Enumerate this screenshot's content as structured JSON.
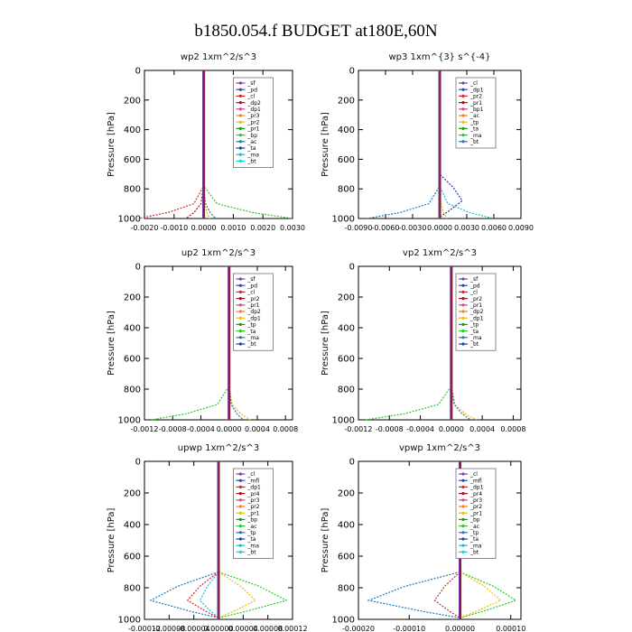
{
  "page": {
    "title": "b1850.054.f  BUDGET at180E,60N"
  },
  "chart_data": [
    {
      "type": "line",
      "title": "wp2   1xm^2/s^3",
      "ylabel": "Pressure [hPa]",
      "xlim": [
        -0.002,
        0.003
      ],
      "ylim": [
        1000,
        0
      ],
      "xticks": [
        -0.002,
        -0.001,
        0.0,
        0.001,
        0.002,
        0.003
      ],
      "xtick_labels": [
        "-0.0020",
        "-0.0010",
        "0.0000",
        "0.0010",
        "0.0020",
        "0.0030"
      ],
      "yticks": [
        0,
        200,
        400,
        600,
        800,
        1000
      ],
      "legend": [
        "_sf",
        "_pd",
        "_cl",
        "_dp2",
        "_dp1",
        "_pr3",
        "_pr2",
        "_pr1",
        "_bp",
        "_ac",
        "_ta",
        "_ma",
        "_bt"
      ],
      "series": [
        {
          "name": "_dp1",
          "color": "#d62728",
          "profile": "spike",
          "value": -0.0022
        },
        {
          "name": "_bp",
          "color": "#22cc22",
          "profile": "spike",
          "value": 0.003
        },
        {
          "name": "_dp2",
          "color": "#b01010",
          "profile": "spike",
          "value": -0.0006
        },
        {
          "name": "_ta",
          "color": "#1f77b4",
          "profile": "spike",
          "value": 0.0004
        },
        {
          "name": "_pr1",
          "color": "#f0c000",
          "profile": "spike",
          "value": 0.0002
        }
      ]
    },
    {
      "type": "line",
      "title": "wp3   1xm^{3} s^{-4}",
      "ylabel": "Pressure [hPa]",
      "xlim": [
        -0.009,
        0.009
      ],
      "ylim": [
        1000,
        0
      ],
      "xticks": [
        -0.009,
        -0.006,
        -0.003,
        0.0,
        0.003,
        0.006,
        0.009
      ],
      "xtick_labels": [
        "-0.0090",
        "-0.0060",
        "-0.0030",
        "0.0000",
        "0.0030",
        "0.0060",
        "0.0090"
      ],
      "yticks": [
        0,
        200,
        400,
        600,
        800,
        1000
      ],
      "legend": [
        "_cl",
        "_dp1",
        "_pr2",
        "_pr1",
        "_bp1",
        "_ac",
        "_tp",
        "_ta",
        "_ma",
        "_bt"
      ],
      "series": [
        {
          "name": "_ta",
          "color": "#1f3fa8",
          "profile": "bulge",
          "value": 0.0025
        },
        {
          "name": "_tp",
          "color": "#1f77b4",
          "profile": "spike",
          "value": -0.008
        },
        {
          "name": "_ma",
          "color": "#17becf",
          "profile": "spike",
          "value": 0.006
        },
        {
          "name": "_pr1",
          "color": "#f0c000",
          "profile": "spike",
          "value": 0.0008
        }
      ]
    },
    {
      "type": "line",
      "title": "up2   1xm^2/s^3",
      "ylabel": "Pressure [hPa]",
      "xlim": [
        -0.0012,
        0.0009
      ],
      "ylim": [
        1000,
        0
      ],
      "xticks": [
        -0.0012,
        -0.0008,
        -0.0004,
        0.0,
        0.0004,
        0.0008
      ],
      "xtick_labels": [
        "-0.0012",
        "-0.0008",
        "-0.0004",
        "0.0000",
        "0.0004",
        "0.0008"
      ],
      "yticks": [
        0,
        200,
        400,
        600,
        800,
        1000
      ],
      "legend": [
        "_sf",
        "_pd",
        "_cl",
        "_pr2",
        "_pr1",
        "_dp2",
        "_dp1",
        "_tp",
        "_ta",
        "_ma",
        "_bt"
      ],
      "series": [
        {
          "name": "_dp1",
          "color": "#22cc22",
          "profile": "spike",
          "value": -0.0011
        },
        {
          "name": "_pr1",
          "color": "#f0c000",
          "profile": "spike",
          "value": 0.0003
        },
        {
          "name": "_ta",
          "color": "#1f77b4",
          "profile": "spike",
          "value": 0.0002
        }
      ]
    },
    {
      "type": "line",
      "title": "vp2   1xm^2/s^3",
      "ylabel": "Pressure [hPa]",
      "xlim": [
        -0.0012,
        0.0009
      ],
      "ylim": [
        1000,
        0
      ],
      "xticks": [
        -0.0012,
        -0.0008,
        -0.0004,
        0.0,
        0.0004,
        0.0008
      ],
      "xtick_labels": [
        "-0.0012",
        "-0.0008",
        "-0.0004",
        "0.0000",
        "0.0004",
        "0.0008"
      ],
      "yticks": [
        0,
        200,
        400,
        600,
        800,
        1000
      ],
      "legend": [
        "_sf",
        "_pd",
        "_cl",
        "_pr2",
        "_pr1",
        "_dp2",
        "_dp1",
        "_tp",
        "_ta",
        "_ma",
        "_bt"
      ],
      "series": [
        {
          "name": "_dp1",
          "color": "#22cc22",
          "profile": "spike",
          "value": -0.0011
        },
        {
          "name": "_pr1",
          "color": "#f0c000",
          "profile": "spike",
          "value": 0.00032
        },
        {
          "name": "_ta",
          "color": "#1f77b4",
          "profile": "spike",
          "value": 0.00025
        }
      ]
    },
    {
      "type": "line",
      "title": "upwp   1xm^2/s^3",
      "ylabel": "Pressure [hPa]",
      "xlim": [
        -0.00012,
        0.00012
      ],
      "ylim": [
        1000,
        0
      ],
      "xticks": [
        -0.00012,
        -8e-05,
        -4e-05,
        0.0,
        4e-05,
        8e-05,
        0.00012
      ],
      "xtick_labels": [
        "-0.00012",
        "-0.00008",
        "-0.00004",
        "0.00000",
        "0.00004",
        "0.00008",
        "0.00012"
      ],
      "yticks": [
        0,
        200,
        400,
        600,
        800,
        1000
      ],
      "legend": [
        "_cl",
        "_mfl",
        "_dp1",
        "_pr4",
        "_pr3",
        "_pr2",
        "_pr1",
        "_bp",
        "_ac",
        "_tp",
        "_ta",
        "_ma",
        "_bt"
      ],
      "series": [
        {
          "name": "_bp",
          "color": "#22cc22",
          "profile": "bulge",
          "value": 0.00011
        },
        {
          "name": "_tp",
          "color": "#1f77b4",
          "profile": "bulge",
          "value": -0.00011
        },
        {
          "name": "_dp1",
          "color": "#d62728",
          "profile": "bulge",
          "value": -5e-05
        },
        {
          "name": "_pr1",
          "color": "#f0c000",
          "profile": "bulge",
          "value": 6e-05
        },
        {
          "name": "_ac",
          "color": "#17becf",
          "profile": "bulge",
          "value": -3e-05
        }
      ]
    },
    {
      "type": "line",
      "title": "vpwp   1xm^2/s^3",
      "ylabel": "Pressure [hPa]",
      "xlim": [
        -0.0002,
        0.00012
      ],
      "ylim": [
        1000,
        0
      ],
      "xticks": [
        -0.0002,
        -0.0001,
        0.0,
        0.0001
      ],
      "xtick_labels": [
        "-0.00020",
        "-0.00010",
        "0.00000",
        "0.00010"
      ],
      "yticks": [
        0,
        200,
        400,
        600,
        800,
        1000
      ],
      "legend": [
        "_cl",
        "_mfl",
        "_dp1",
        "_pr4",
        "_pr3",
        "_pr2",
        "_pr1",
        "_bp",
        "_ac",
        "_tp",
        "_ta",
        "_ma",
        "_bt"
      ],
      "series": [
        {
          "name": "_tp",
          "color": "#1f77b4",
          "profile": "bulge",
          "value": -0.00018
        },
        {
          "name": "_bp",
          "color": "#22cc22",
          "profile": "bulge",
          "value": 0.00011
        },
        {
          "name": "_pr1",
          "color": "#f0c000",
          "profile": "bulge",
          "value": 8e-05
        },
        {
          "name": "_dp1",
          "color": "#d62728",
          "profile": "bulge",
          "value": -5e-05
        }
      ]
    }
  ]
}
